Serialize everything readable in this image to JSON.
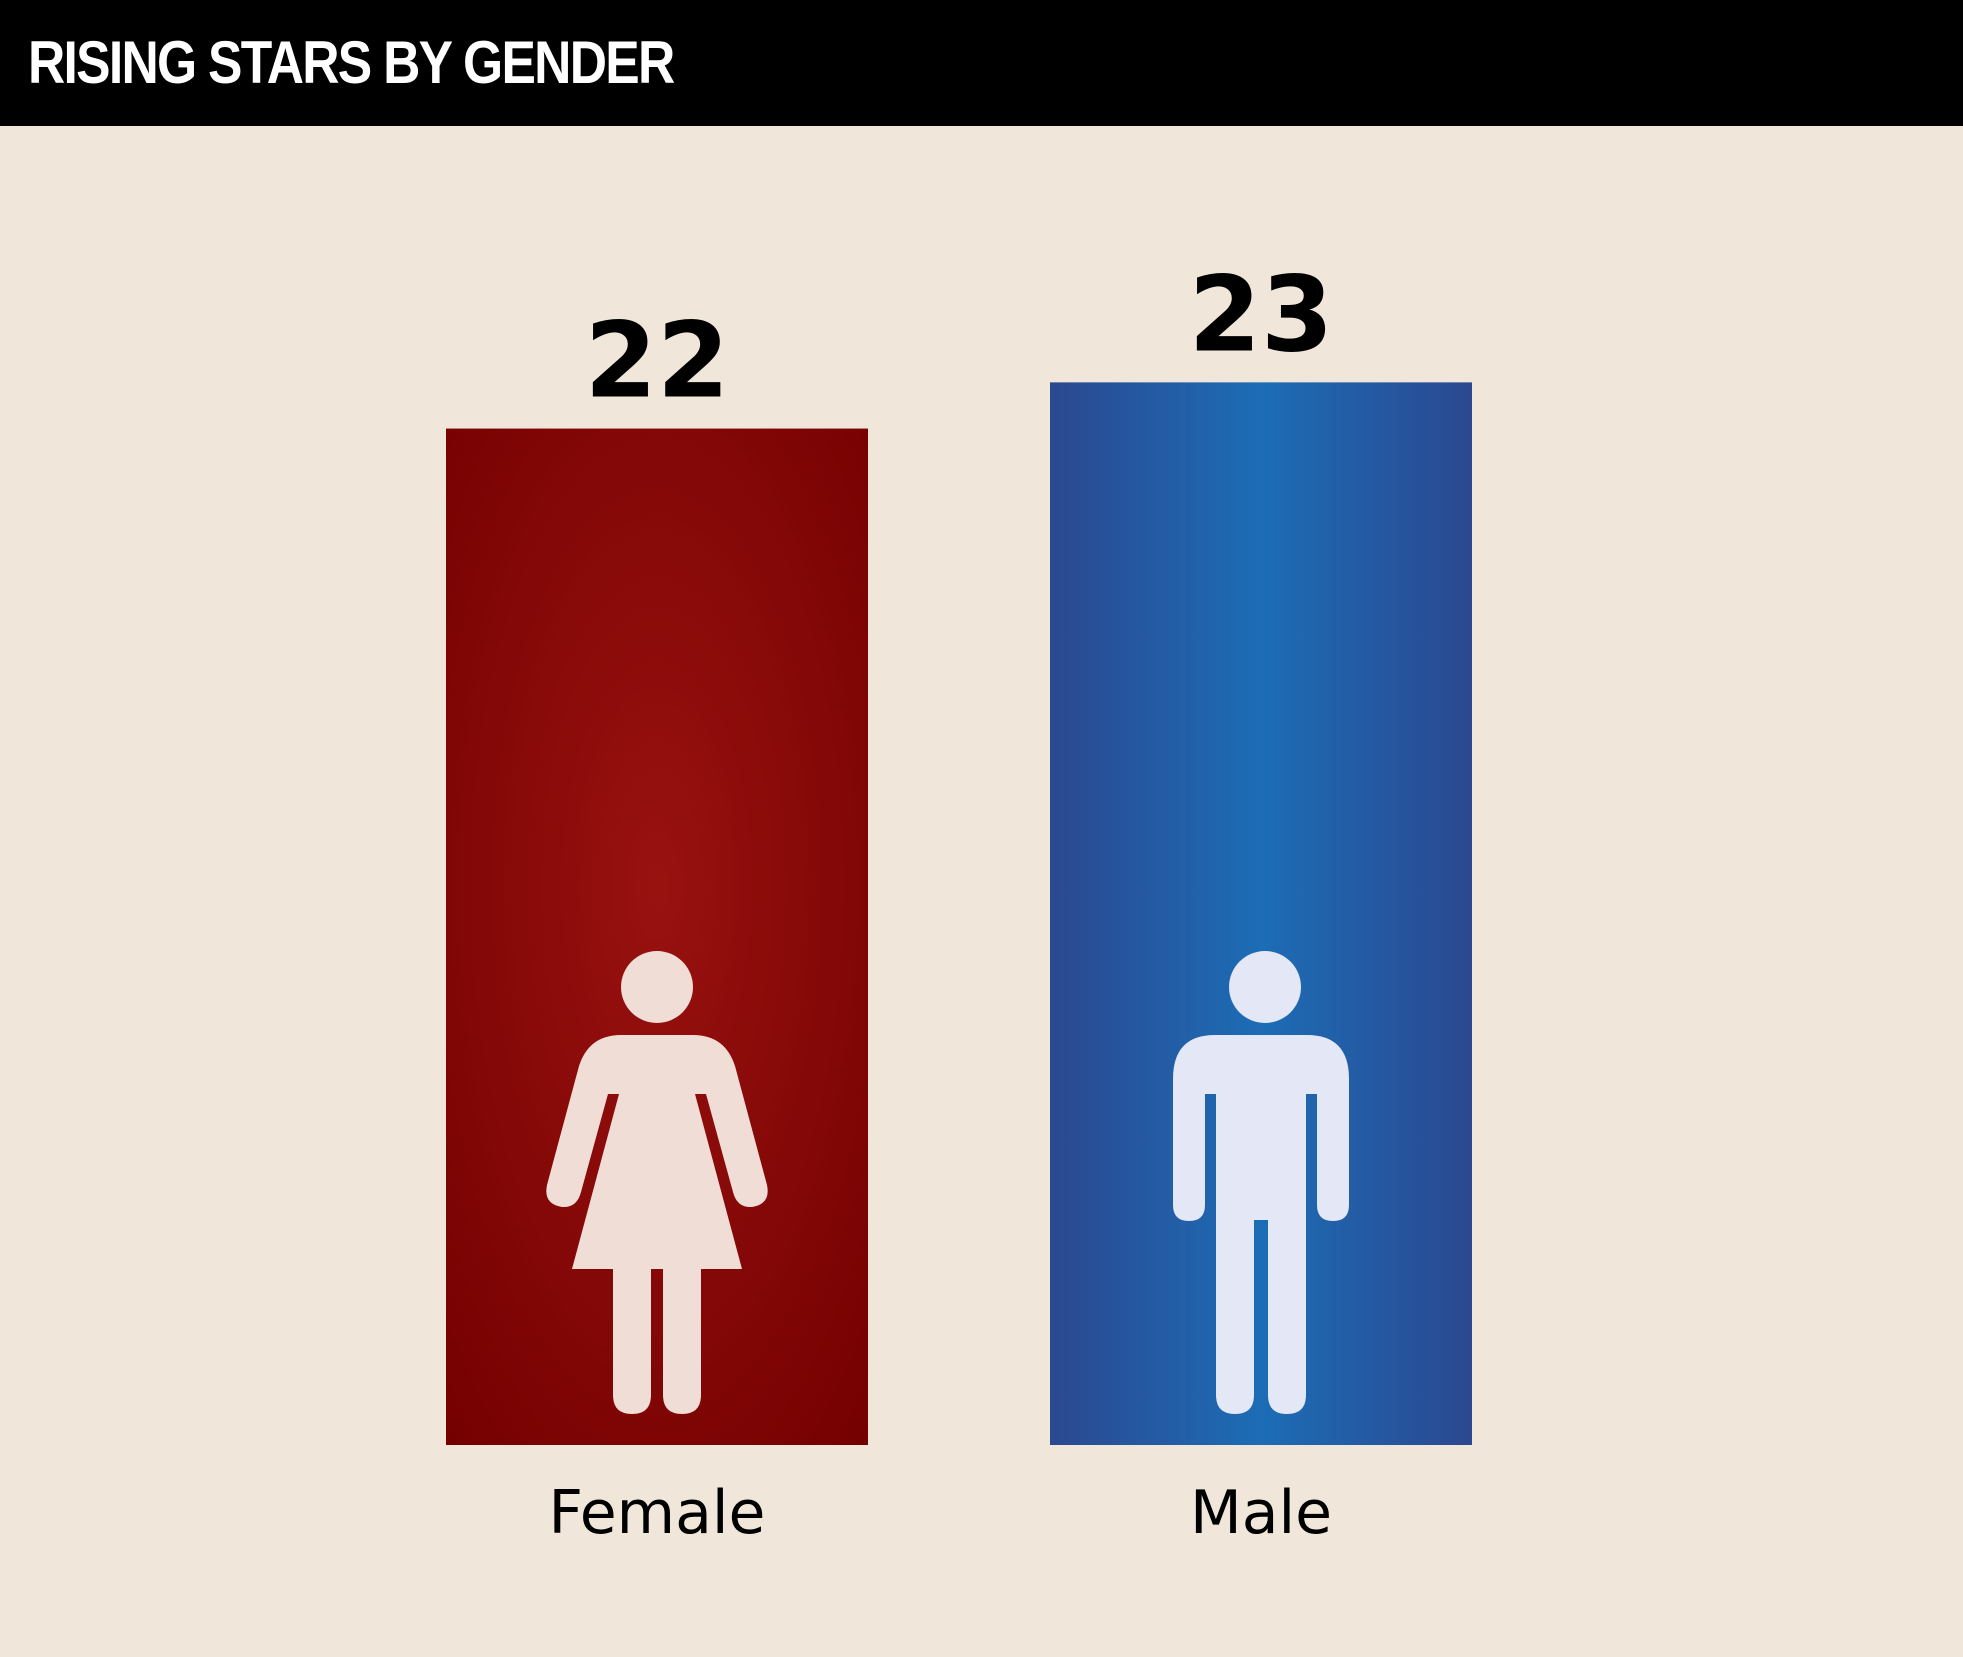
{
  "title": "RISING STARS BY GENDER",
  "chart_data": {
    "type": "bar",
    "categories": [
      "Female",
      "Male"
    ],
    "values": [
      22,
      23
    ],
    "ylim": [
      0,
      25.8
    ],
    "grid": false,
    "legend": "none",
    "icons": [
      "female-figure-icon",
      "male-figure-icon"
    ],
    "colors": {
      "female_bar_center": "#981210",
      "female_bar_edge": "#740000",
      "male_bar_center": "#1c6db6",
      "male_bar_edge": "#2b4890",
      "female_icon": "#f0ddd6",
      "male_icon": "#e4e7f5",
      "label": "#000000",
      "header_bg": "#000000",
      "header_text": "#ffffff",
      "background": "#f0e7da"
    }
  }
}
